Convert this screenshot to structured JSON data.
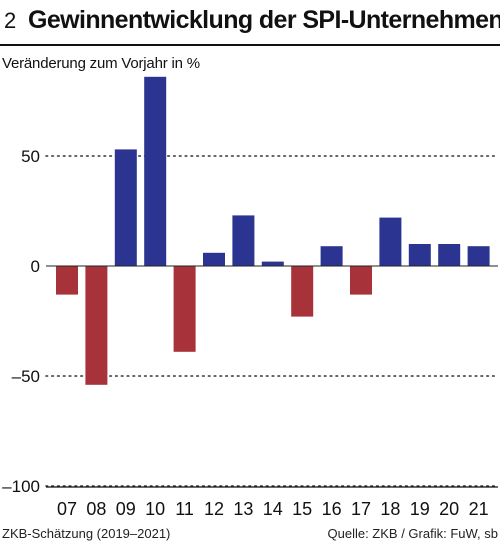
{
  "header": {
    "figure_number": "2",
    "title": "Gewinnentwicklung der SPI-Unternehmen"
  },
  "footer": {
    "note": "ZKB-Schätzung (2019–2021)",
    "source": "Quelle: ZKB / Grafik: FuW, sb"
  },
  "colors": {
    "positive": "#2b3491",
    "negative": "#a8323a",
    "grid": "#333333"
  },
  "chart_data": {
    "type": "bar",
    "title": "Gewinnentwicklung der SPI-Unternehmen",
    "ylabel": "Veränderung zum Vorjahr in %",
    "xlabel": "",
    "categories": [
      "07",
      "08",
      "09",
      "10",
      "11",
      "12",
      "13",
      "14",
      "15",
      "16",
      "17",
      "18",
      "19",
      "20",
      "21"
    ],
    "values": [
      -13,
      -54,
      53,
      86,
      -39,
      6,
      23,
      2,
      -23,
      9,
      -13,
      22,
      10,
      10,
      9
    ],
    "ylim": [
      -100,
      86
    ],
    "yticks": [
      50,
      0,
      -50,
      -100
    ],
    "ytick_labels": [
      "50",
      "0",
      "–50",
      "–100"
    ],
    "grid": "dotted horizontal at 50 and –50",
    "legend": "none"
  }
}
